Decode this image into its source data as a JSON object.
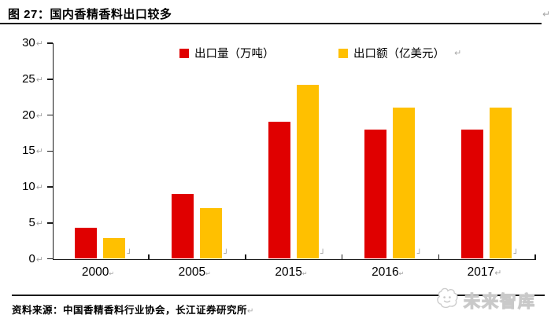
{
  "title": "图 27：国内香精香料出口较多",
  "source": "资料来源：中国香精香料行业协会，长江证券研究所",
  "watermark": "未来智库",
  "marks": {
    "newline": "↵",
    "corner": "┘"
  },
  "colors": {
    "export_volume": "#e00000",
    "export_value": "#ffc000",
    "axis": "#1a1a1a",
    "return_mark": "#a6a6a6"
  },
  "chart_data": {
    "type": "bar",
    "title": "图 27：国内香精香料出口较多",
    "categories": [
      "2000",
      "2005",
      "2015",
      "2016",
      "2017"
    ],
    "series": [
      {
        "name": "出口量（万吨）",
        "color": "#e00000",
        "values": [
          4.3,
          9.0,
          19.1,
          18.0,
          18.0
        ]
      },
      {
        "name": "出口额（亿美元）",
        "color": "#ffc000",
        "values": [
          2.9,
          7.1,
          24.2,
          21.0,
          21.0
        ]
      }
    ],
    "ylim": [
      0,
      30
    ],
    "yticks": [
      0,
      5,
      10,
      15,
      20,
      25,
      30
    ],
    "xlabel": "",
    "ylabel": "",
    "grid": false,
    "legend_position": "top"
  }
}
